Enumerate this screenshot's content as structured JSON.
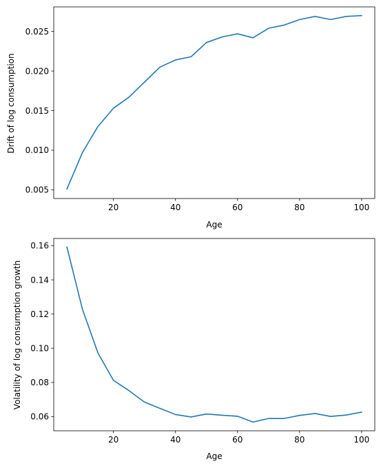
{
  "chart_data": [
    {
      "type": "line",
      "title": "",
      "xlabel": "Age",
      "ylabel": "Drift of log consumption",
      "xlim": [
        0.75,
        104.25
      ],
      "ylim": [
        0.0039,
        0.0281
      ],
      "xticks": [
        20,
        40,
        60,
        80,
        100
      ],
      "xtick_labels": [
        "20",
        "40",
        "60",
        "80",
        "100"
      ],
      "yticks": [
        0.005,
        0.01,
        0.015,
        0.02,
        0.025
      ],
      "ytick_labels": [
        "0.005",
        "0.010",
        "0.015",
        "0.020",
        "0.025"
      ],
      "grid": false,
      "series": [
        {
          "color": "#1f77b4",
          "x": [
            5,
            10,
            15,
            20,
            25,
            30,
            35,
            40,
            45,
            50,
            55,
            60,
            65,
            70,
            75,
            80,
            85,
            90,
            95,
            100
          ],
          "y": [
            0.0051,
            0.0097,
            0.013,
            0.0153,
            0.0167,
            0.0186,
            0.0205,
            0.0214,
            0.0218,
            0.0236,
            0.0243,
            0.0247,
            0.0242,
            0.0254,
            0.0258,
            0.0265,
            0.0269,
            0.0265,
            0.0269,
            0.027
          ]
        }
      ]
    },
    {
      "type": "line",
      "title": "",
      "xlabel": "Age",
      "ylabel": "Volatility of log consumption growth",
      "xlim": [
        0.75,
        104.25
      ],
      "ylim": [
        0.0517,
        0.1642
      ],
      "xticks": [
        20,
        40,
        60,
        80,
        100
      ],
      "xtick_labels": [
        "20",
        "40",
        "60",
        "80",
        "100"
      ],
      "yticks": [
        0.06,
        0.08,
        0.1,
        0.12,
        0.14,
        0.16
      ],
      "ytick_labels": [
        "0.06",
        "0.08",
        "0.10",
        "0.12",
        "0.14",
        "0.16"
      ],
      "grid": false,
      "series": [
        {
          "color": "#1f77b4",
          "x": [
            5,
            10,
            15,
            20,
            25,
            30,
            35,
            40,
            45,
            50,
            55,
            60,
            65,
            70,
            75,
            80,
            85,
            90,
            95,
            100
          ],
          "y": [
            0.1592,
            0.1228,
            0.0972,
            0.0812,
            0.0752,
            0.0685,
            0.0648,
            0.0612,
            0.0598,
            0.0615,
            0.0608,
            0.0602,
            0.0568,
            0.0589,
            0.0589,
            0.0607,
            0.0618,
            0.0601,
            0.0609,
            0.0626
          ]
        }
      ]
    }
  ]
}
